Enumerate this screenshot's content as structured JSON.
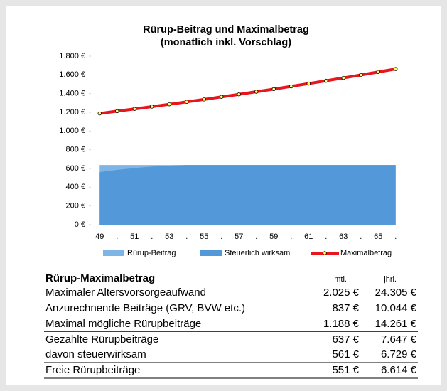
{
  "chart_data": {
    "type": "area_line",
    "title": "Rürup-Beitrag und Maximalbetrag",
    "subtitle": "(monatlich inkl. Vorschlag)",
    "categories": [
      "49",
      ".",
      "51",
      ".",
      "53",
      ".",
      "55",
      ".",
      "57",
      ".",
      "59",
      ".",
      "61",
      ".",
      "63",
      ".",
      "65",
      "."
    ],
    "series": [
      {
        "name": "Rürup-Beitrag",
        "kind": "area",
        "color": "#7fb5e6",
        "values": [
          637,
          637,
          637,
          637,
          637,
          637,
          637,
          637,
          637,
          637,
          637,
          637,
          637,
          637,
          637,
          637,
          637,
          637
        ]
      },
      {
        "name": "Steuerlich wirksam",
        "kind": "area",
        "color": "#5398d8",
        "values": [
          561,
          585,
          605,
          620,
          630,
          637,
          637,
          637,
          637,
          637,
          637,
          637,
          637,
          637,
          637,
          637,
          637,
          637
        ]
      },
      {
        "name": "Maximalbetrag",
        "kind": "line",
        "color": "#e8141e",
        "marker_color": "#ffff66",
        "values": [
          1188,
          1212,
          1236,
          1261,
          1286,
          1312,
          1338,
          1365,
          1392,
          1420,
          1448,
          1477,
          1507,
          1537,
          1568,
          1599,
          1631,
          1663
        ]
      }
    ],
    "ylim": [
      0,
      1800
    ],
    "yticks": [
      {
        "value": 0,
        "label": "0 €"
      },
      {
        "value": 200,
        "label": "200 €"
      },
      {
        "value": 400,
        "label": "400 €"
      },
      {
        "value": 600,
        "label": "600 €"
      },
      {
        "value": 800,
        "label": "800 €"
      },
      {
        "value": 1000,
        "label": "1.000 €"
      },
      {
        "value": 1200,
        "label": "1.200 €"
      },
      {
        "value": 1400,
        "label": "1.400 €"
      },
      {
        "value": 1600,
        "label": "1.600 €"
      },
      {
        "value": 1800,
        "label": "1.800 €"
      }
    ],
    "grid": false,
    "legend": "bottom"
  },
  "table": {
    "header": [
      "Rürup-Maximalbetrag",
      "mtl.",
      "jhrl."
    ],
    "rows": [
      [
        "Maximaler Altersvorsorgeaufwand",
        "2.025 €",
        "24.305 €"
      ],
      [
        "Anzurechnende Beiträge (GRV, BVW etc.)",
        "837 €",
        "10.044 €"
      ],
      [
        "Maximal mögliche Rürupbeiträge",
        "1.188 €",
        "14.261 €"
      ],
      [
        "Gezahlte Rürupbeiträge",
        "637 €",
        "7.647 €"
      ],
      [
        "davon steuerwirksam",
        "561 €",
        "6.729 €"
      ],
      [
        "Freie Rürupbeiträge",
        "551 €",
        "6.614 €"
      ]
    ]
  }
}
